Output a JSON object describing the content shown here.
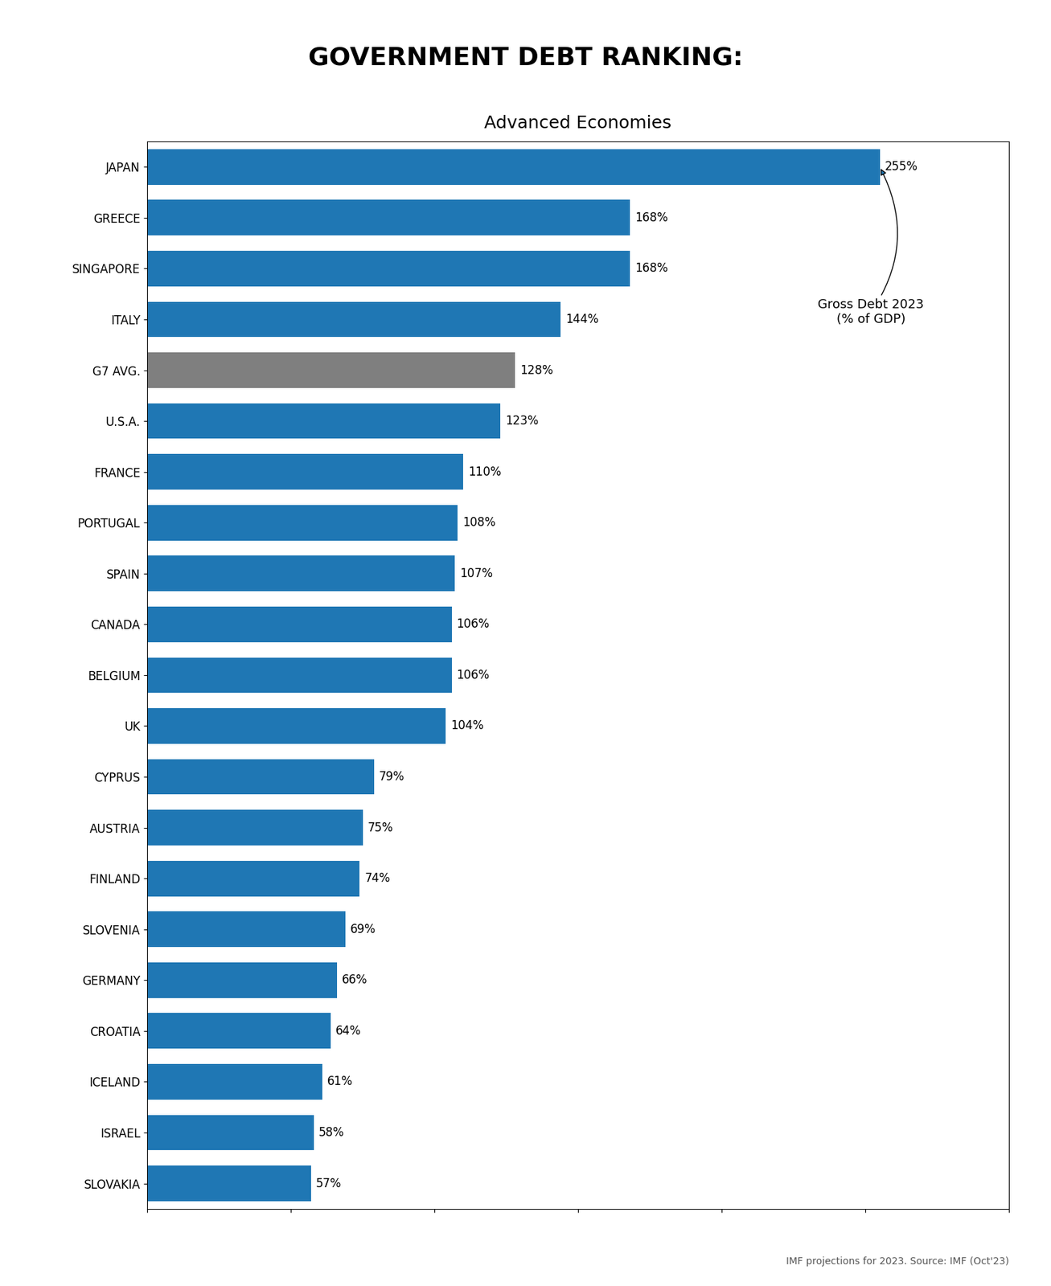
{
  "chart_data": {
    "type": "bar",
    "orientation": "horizontal",
    "title": "GOVERNMENT DEBT RANKING:",
    "subtitle": "Advanced Economies",
    "categories": [
      "JAPAN",
      "GREECE",
      "SINGAPORE",
      "ITALY",
      "G7 AVG.",
      "U.S.A.",
      "FRANCE",
      "PORTUGAL",
      "SPAIN",
      "CANADA",
      "BELGIUM",
      "UK",
      "CYPRUS",
      "AUSTRIA",
      "FINLAND",
      "SLOVENIA",
      "GERMANY",
      "CROATIA",
      "ICELAND",
      "ISRAEL",
      "SLOVAKIA"
    ],
    "values": [
      255,
      168,
      168,
      144,
      128,
      123,
      110,
      108,
      107,
      106,
      106,
      104,
      79,
      75,
      74,
      69,
      66,
      64,
      61,
      58,
      57
    ],
    "value_labels": [
      "255%",
      "168%",
      "168%",
      "144%",
      "128%",
      "123%",
      "110%",
      "108%",
      "107%",
      "106%",
      "106%",
      "104%",
      "79%",
      "75%",
      "74%",
      "69%",
      "66%",
      "64%",
      "61%",
      "58%",
      "57%"
    ],
    "data_labels": true,
    "colors": [
      "#1f77b4",
      "#1f77b4",
      "#1f77b4",
      "#1f77b4",
      "#7f7f7f",
      "#1f77b4",
      "#1f77b4",
      "#1f77b4",
      "#1f77b4",
      "#1f77b4",
      "#1f77b4",
      "#1f77b4",
      "#1f77b4",
      "#1f77b4",
      "#1f77b4",
      "#1f77b4",
      "#1f77b4",
      "#1f77b4",
      "#1f77b4",
      "#1f77b4",
      "#1f77b4"
    ],
    "xlim": [
      0,
      300
    ],
    "xticks": [
      0,
      50,
      100,
      150,
      200,
      250,
      300
    ],
    "tick_labels": "y",
    "annotation": "Gross Debt 2023\n(% of GDP)",
    "source": "IMF projections for 2023. Source: IMF (Oct'23)",
    "grid": false
  }
}
